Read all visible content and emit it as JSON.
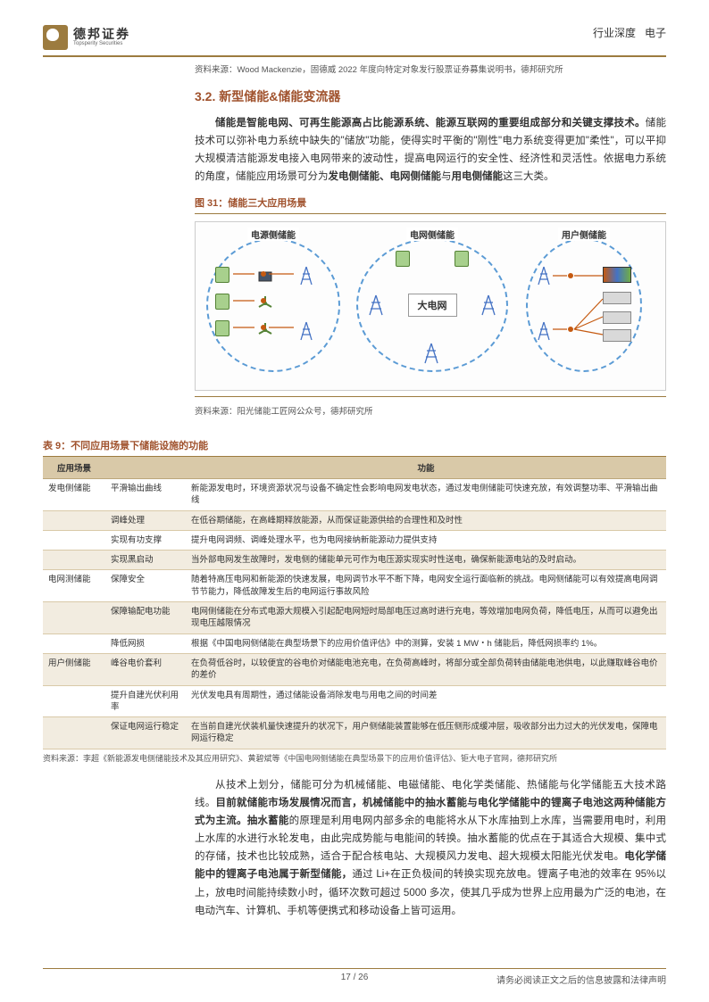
{
  "header": {
    "logo_cn": "德邦证券",
    "logo_en": "Topsperity Securities",
    "category": "行业深度",
    "sub": "电子"
  },
  "source1": "资料来源：Wood Mackenzie，固德威 2022 年度向特定对象发行股票证券募集说明书，德邦研究所",
  "section_title": "3.2. 新型储能&储能变流器",
  "para1_bold": "储能是智能电网、可再生能源高占比能源系统、能源互联网的重要组成部分和关键支撑技术。",
  "para1_rest": "储能技术可以弥补电力系统中缺失的\"储放\"功能，使得实时平衡的\"刚性\"电力系统变得更加\"柔性\"，可以平抑大规模清洁能源发电接入电网带来的波动性，提高电网运行的安全性、经济性和灵活性。依据电力系统的角度，储能应用场景可分为",
  "para1_bold2": "发电侧储能、电网侧储能",
  "para1_rest2": "与",
  "para1_bold3": "用电侧储能",
  "para1_rest3": "这三大类。",
  "fig_caption": "图 31：储能三大应用场景",
  "diagram": {
    "zone1": "电源侧储能",
    "zone2": "电网侧储能",
    "zone3": "用户侧储能",
    "center": "大电网"
  },
  "source2": "资料来源：阳光储能工匠网公众号，德邦研究所",
  "table_title": "表 9：不同应用场景下储能设施的功能",
  "table": {
    "headers": [
      "应用场景",
      "",
      "功能"
    ],
    "rows": [
      {
        "g": "发电侧储能",
        "k": "平滑输出曲线",
        "v": "新能源发电时，环境资源状况与设备不确定性会影响电网发电状态，通过发电侧储能可快速充放，有效调整功率、平滑输出曲线",
        "alt": false
      },
      {
        "g": "",
        "k": "调峰处理",
        "v": "在低谷期储能，在高峰期释放能源，从而保证能源供给的合理性和及时性",
        "alt": true
      },
      {
        "g": "",
        "k": "实现有功支撑",
        "v": "提升电网调频、调峰处理水平，也为电网接纳新能源动力提供支持",
        "alt": false
      },
      {
        "g": "",
        "k": "实现黑启动",
        "v": "当外部电网发生故障时，发电侧的储能单元可作为电压源实现实时性送电，确保新能源电站的及时启动。",
        "alt": true
      },
      {
        "g": "电网测储能",
        "k": "保障安全",
        "v": "随着特高压电网和新能源的快速发展，电网调节水平不断下降，电网安全运行面临新的挑战。电网侧储能可以有效提高电网调节节能力，降低故障发生后的电网运行事故风险",
        "alt": false
      },
      {
        "g": "",
        "k": "保障输配电功能",
        "v": "电网侧储能在分布式电源大规模入引起配电网短时局部电压过高时进行充电，等效增加电网负荷，降低电压，从而可以避免出现电压越限情况",
        "alt": true
      },
      {
        "g": "",
        "k": "降低网损",
        "v": "根据《中国电网侧储能在典型场景下的应用价值评估》中的测算，安装 1 MW・h 储能后，降低网损率约 1%。",
        "alt": false
      },
      {
        "g": "用户侧储能",
        "k": "峰谷电价套利",
        "v": "在负荷低谷时，以较便宜的谷电价对储能电池充电，在负荷高峰时，将部分或全部负荷转由储能电池供电，以此赚取峰谷电价的差价",
        "alt": true
      },
      {
        "g": "",
        "k": "提升自建光伏利用率",
        "v": "光伏发电具有周期性，通过储能设备消除发电与用电之间的时间差",
        "alt": false
      },
      {
        "g": "",
        "k": "保证电网运行稳定",
        "v": "在当前自建光伏装机量快速提升的状况下，用户侧储能装置能够在低压侧形成缓冲层，吸收部分出力过大的光伏发电，保障电网运行稳定",
        "alt": true
      }
    ]
  },
  "source3": "资料来源：李超《新能源发电侧储能技术及其应用研究》、黄碧斌等《中国电网侧储能在典型场景下的应用价值评估》、钜大电子官网，德邦研究所",
  "para2_a": "从技术上划分，储能可分为机械储能、电磁储能、电化学类储能、热储能与化学储能五大技术路线。",
  "para2_b": "目前就储能市场发展情况而言，机械储能中的抽水蓄能与电化学储能中的锂离子电池这两种储能方式为主流。抽水蓄能",
  "para2_c": "的原理是利用电网内部多余的电能将水从下水库抽到上水库，当需要用电时，利用上水库的水进行水轮发电，由此完成势能与电能间的转换。抽水蓄能的优点在于其适合大规模、集中式的存储，技术也比较成熟，适合于配合核电站、大规模风力发电、超大规模太阳能光伏发电。",
  "para2_d": "电化学储能中的锂离子电池属于新型储能，",
  "para2_e": "通过 Li+在正负极间的转换实现充放电。锂离子电池的效率在 95%以上，放电时间能持续数小时，循环次数可超过 5000 多次，使其几乎成为世界上应用最为广泛的电池，在电动汽车、计算机、手机等便携式和移动设备上皆可运用。",
  "footer": {
    "page": "17 / 26",
    "disclaimer": "请务必阅读正文之后的信息披露和法律声明"
  }
}
